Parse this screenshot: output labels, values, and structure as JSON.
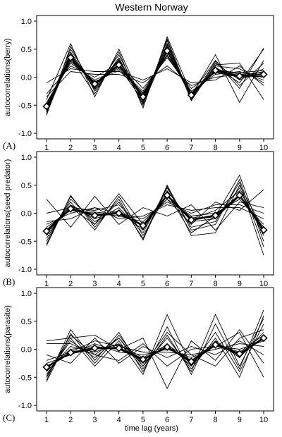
{
  "figure": {
    "title": "Western Norway",
    "xlabel": "time lag (years)"
  },
  "chart_data": [
    {
      "type": "line",
      "panel_tag": "(A)",
      "ylabel": "autocorrelations(berry)",
      "x": [
        1,
        2,
        3,
        4,
        5,
        6,
        7,
        8,
        9,
        10
      ],
      "xlim": [
        1,
        10
      ],
      "ylim": [
        -1.0,
        1.0
      ],
      "yticks": [
        "-1.0",
        "-0.5",
        "0.0",
        "0.5",
        "1.0"
      ],
      "mean_series": {
        "values": [
          -0.52,
          0.35,
          -0.12,
          0.22,
          -0.35,
          0.47,
          -0.32,
          0.12,
          0.02,
          0.05
        ],
        "marker": "diamond"
      },
      "series": [
        {
          "values": [
            -0.62,
            0.4,
            -0.15,
            0.3,
            -0.4,
            0.55,
            -0.35,
            0.15,
            0.05,
            0.08
          ]
        },
        {
          "values": [
            -0.55,
            0.3,
            -0.1,
            0.2,
            -0.3,
            0.45,
            -0.3,
            0.1,
            0.0,
            0.02
          ]
        },
        {
          "values": [
            -0.68,
            0.55,
            -0.25,
            0.35,
            -0.5,
            0.68,
            -0.4,
            0.25,
            -0.05,
            0.15
          ]
        },
        {
          "values": [
            -0.45,
            0.25,
            -0.05,
            0.15,
            -0.25,
            0.4,
            -0.25,
            0.05,
            0.1,
            -0.05
          ]
        },
        {
          "values": [
            -0.35,
            0.1,
            0.05,
            0.05,
            -0.1,
            0.2,
            -0.15,
            0.0,
            0.05,
            0.0
          ]
        },
        {
          "values": [
            -0.6,
            0.45,
            -0.2,
            0.4,
            -0.45,
            0.6,
            -0.38,
            0.2,
            0.15,
            -0.1
          ]
        },
        {
          "values": [
            -0.5,
            0.35,
            -0.3,
            0.45,
            -0.55,
            0.72,
            -0.3,
            0.3,
            -0.15,
            0.25
          ]
        },
        {
          "values": [
            -0.3,
            0.2,
            0.0,
            0.25,
            -0.2,
            0.35,
            -0.2,
            0.08,
            0.0,
            0.1
          ]
        },
        {
          "values": [
            -0.58,
            0.5,
            -0.18,
            0.28,
            -0.38,
            0.5,
            -0.36,
            0.18,
            -0.1,
            0.5
          ]
        },
        {
          "values": [
            -0.65,
            0.38,
            -0.12,
            0.18,
            -0.42,
            0.58,
            -0.33,
            0.4,
            -0.45,
            0.3
          ]
        },
        {
          "values": [
            -0.1,
            0.15,
            0.1,
            0.1,
            -0.05,
            0.15,
            -0.1,
            -0.05,
            0.2,
            -0.15
          ]
        },
        {
          "values": [
            -0.4,
            0.6,
            -0.35,
            0.5,
            -0.45,
            0.65,
            -0.42,
            0.22,
            0.25,
            -0.4
          ]
        },
        {
          "values": [
            -0.48,
            0.28,
            -0.08,
            0.12,
            -0.28,
            0.38,
            -0.28,
            0.12,
            0.08,
            0.12
          ]
        },
        {
          "values": [
            -0.62,
            0.42,
            -0.22,
            0.32,
            -0.48,
            0.52,
            -0.38,
            0.28,
            -0.2,
            0.52
          ]
        }
      ]
    },
    {
      "type": "line",
      "panel_tag": "(B)",
      "ylabel": "autocorrelations(seed predator)",
      "x": [
        1,
        2,
        3,
        4,
        5,
        6,
        7,
        8,
        9,
        10
      ],
      "xlim": [
        1,
        10
      ],
      "ylim": [
        -1.0,
        1.0
      ],
      "yticks": [
        "-1.0",
        "-0.5",
        "0.0",
        "0.5",
        "1.0"
      ],
      "mean_series": {
        "values": [
          -0.32,
          0.08,
          -0.04,
          0.0,
          -0.22,
          0.32,
          -0.12,
          -0.04,
          0.32,
          -0.3
        ],
        "marker": "diamond"
      },
      "series": [
        {
          "values": [
            -0.4,
            0.15,
            -0.1,
            0.05,
            -0.3,
            0.4,
            -0.15,
            -0.1,
            0.45,
            -0.4
          ]
        },
        {
          "values": [
            -0.25,
            0.05,
            0.0,
            -0.05,
            -0.15,
            0.25,
            -0.05,
            0.0,
            0.25,
            -0.2
          ]
        },
        {
          "values": [
            -0.55,
            0.3,
            -0.2,
            0.2,
            -0.45,
            0.5,
            -0.3,
            -0.2,
            0.6,
            -0.6
          ]
        },
        {
          "values": [
            -0.15,
            -0.1,
            0.1,
            -0.1,
            -0.05,
            0.15,
            0.05,
            0.1,
            0.1,
            -0.1
          ]
        },
        {
          "values": [
            -0.5,
            0.25,
            -0.15,
            0.1,
            -0.35,
            0.45,
            -0.25,
            -0.15,
            0.55,
            -0.75
          ]
        },
        {
          "values": [
            -0.35,
            0.1,
            0.05,
            0.15,
            -0.25,
            0.3,
            -0.1,
            0.05,
            0.4,
            -0.35
          ]
        },
        {
          "values": [
            0.25,
            -0.25,
            0.3,
            -0.2,
            0.1,
            -0.05,
            0.15,
            -0.3,
            0.2,
            0.1
          ]
        },
        {
          "values": [
            -0.45,
            0.2,
            -0.3,
            0.3,
            -0.4,
            0.35,
            -0.35,
            -0.05,
            0.68,
            -0.5
          ]
        },
        {
          "values": [
            -0.2,
            0.0,
            0.1,
            0.0,
            -0.1,
            0.2,
            0.0,
            0.15,
            0.15,
            0.0
          ]
        },
        {
          "values": [
            -0.58,
            0.32,
            -0.25,
            0.25,
            -0.48,
            0.48,
            -0.4,
            -0.35,
            0.5,
            -0.3
          ]
        },
        {
          "values": [
            0.0,
            0.1,
            -0.2,
            0.35,
            -0.2,
            0.25,
            -0.2,
            0.2,
            0.05,
            0.42
          ]
        },
        {
          "values": [
            -0.3,
            0.12,
            0.02,
            -0.02,
            -0.2,
            0.3,
            -0.08,
            -0.08,
            0.3,
            -0.25
          ]
        }
      ]
    },
    {
      "type": "line",
      "panel_tag": "(C)",
      "ylabel": "autocorrelations(parasite)",
      "x": [
        1,
        2,
        3,
        4,
        5,
        6,
        7,
        8,
        9,
        10
      ],
      "xlim": [
        1,
        10
      ],
      "ylim": [
        -1.0,
        1.0
      ],
      "yticks": [
        "-1.0",
        "-0.5",
        "0.0",
        "0.5",
        "1.0"
      ],
      "mean_series": {
        "values": [
          -0.32,
          -0.06,
          0.02,
          0.02,
          -0.18,
          0.04,
          -0.22,
          0.08,
          -0.08,
          0.2
        ],
        "marker": "diamond"
      },
      "series": [
        {
          "values": [
            -0.4,
            0.05,
            -0.05,
            0.1,
            -0.25,
            0.1,
            -0.3,
            0.15,
            -0.15,
            0.3
          ]
        },
        {
          "values": [
            -0.25,
            -0.1,
            0.1,
            -0.05,
            -0.1,
            0.0,
            -0.15,
            0.05,
            0.0,
            0.15
          ]
        },
        {
          "values": [
            -0.55,
            0.35,
            -0.2,
            0.3,
            -0.4,
            0.4,
            -0.45,
            0.45,
            -0.35,
            0.7
          ]
        },
        {
          "values": [
            -0.1,
            -0.25,
            0.2,
            -0.25,
            0.05,
            -0.15,
            0.05,
            -0.1,
            0.15,
            -0.1
          ]
        },
        {
          "values": [
            -0.5,
            0.2,
            -0.3,
            0.15,
            -0.45,
            0.62,
            -0.3,
            0.3,
            -0.4,
            0.45
          ]
        },
        {
          "values": [
            -0.35,
            0.0,
            0.05,
            0.0,
            -0.2,
            0.05,
            -0.25,
            0.1,
            -0.05,
            0.25
          ]
        },
        {
          "values": [
            0.15,
            0.2,
            0.25,
            0.0,
            0.2,
            -0.7,
            0.15,
            -0.2,
            0.35,
            -0.25
          ]
        },
        {
          "values": [
            -0.45,
            0.15,
            -0.15,
            0.2,
            -0.35,
            0.25,
            -0.4,
            0.62,
            -0.3,
            0.55
          ]
        },
        {
          "values": [
            -0.2,
            -0.05,
            0.15,
            0.05,
            -0.05,
            -0.05,
            -0.1,
            0.0,
            0.1,
            0.05
          ]
        },
        {
          "values": [
            -0.58,
            0.28,
            -0.25,
            0.25,
            -0.3,
            0.2,
            -0.35,
            0.2,
            -0.5,
            0.6
          ]
        },
        {
          "values": [
            0.1,
            0.1,
            -0.1,
            0.2,
            -0.3,
            0.3,
            -0.1,
            -0.3,
            0.2,
            0.35
          ]
        },
        {
          "values": [
            -0.3,
            -0.08,
            0.0,
            0.08,
            -0.15,
            0.08,
            -0.2,
            0.12,
            -0.12,
            0.22
          ]
        },
        {
          "values": [
            -0.48,
            0.25,
            -0.1,
            -0.2,
            0.1,
            -0.3,
            0.0,
            0.05,
            0.3,
            -0.5
          ]
        }
      ]
    }
  ]
}
